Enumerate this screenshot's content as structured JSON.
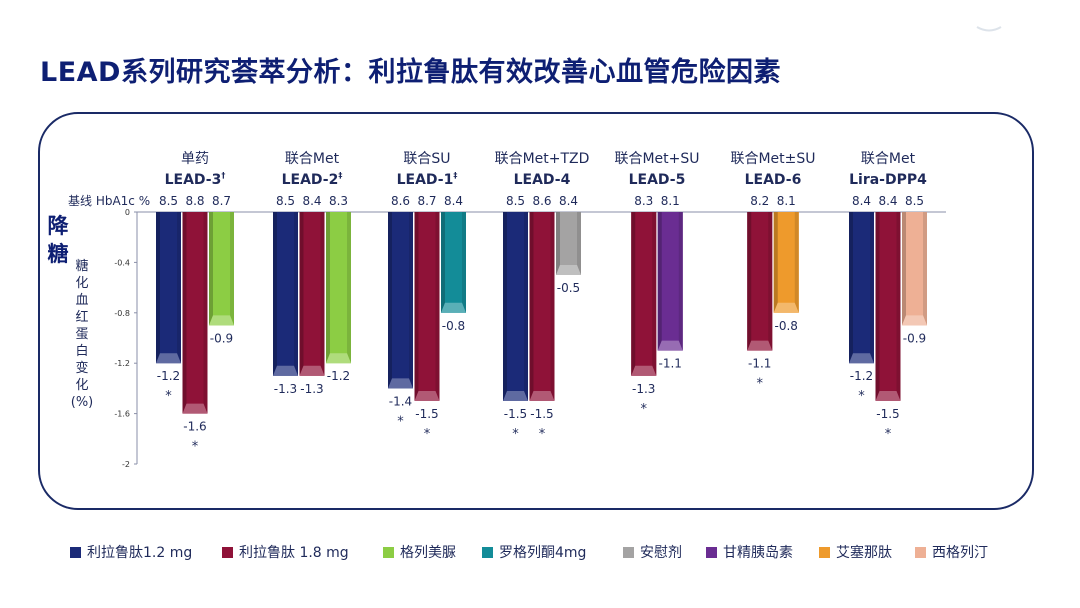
{
  "title": "LEAD系列研究荟萃分析：利拉鲁肽有效改善心血管危险因素",
  "side_title_chars": [
    "降",
    "糖"
  ],
  "y_title_chars": [
    "糖",
    "化",
    "血",
    "红",
    "蛋",
    "白",
    "变",
    "化"
  ],
  "y_title_unit": "(%)",
  "baseline_label": "基线 HbA1c %",
  "colors": {
    "liraglutide_1_2": "#1b2a78",
    "liraglutide_1_8": "#8f1238",
    "glimepiride": "#8ccd44",
    "rosiglitazone": "#138c98",
    "placebo": "#a4a3a3",
    "glargine": "#6a2d92",
    "exenatide": "#ee9a2c",
    "sitagliptin": "#eeb095",
    "text": "#1f2a5a",
    "title": "#0e1f73"
  },
  "legend": [
    {
      "key": "liraglutide_1_2",
      "label": "利拉鲁肽1.2 mg"
    },
    {
      "key": "liraglutide_1_8",
      "label": "利拉鲁肽 1.8 mg"
    },
    {
      "key": "glimepiride",
      "label": "格列美脲"
    },
    {
      "key": "rosiglitazone",
      "label": "罗格列酮4mg"
    },
    {
      "key": "placebo",
      "label": "安慰剂"
    },
    {
      "key": "glargine",
      "label": "甘精胰岛素"
    },
    {
      "key": "exenatide",
      "label": "艾塞那肽"
    },
    {
      "key": "sitagliptin",
      "label": "西格列汀"
    }
  ],
  "chart_data": {
    "type": "bar",
    "ylim": [
      -2,
      0
    ],
    "yticks": [
      "0",
      "-0.4",
      "-0.8",
      "-1.2",
      "-1.6",
      "-2"
    ],
    "ytick_values": [
      0,
      -0.4,
      -0.8,
      -1.2,
      -1.6,
      -2
    ],
    "xlabel": "",
    "ylabel": "糖化血红蛋白变化(%)",
    "groups": [
      {
        "top": "单药",
        "name": "LEAD-3",
        "sup": "†",
        "bars": [
          {
            "key": "liraglutide_1_2",
            "value": -1.2,
            "baseline": "8.5",
            "label": "-1.2",
            "star": true
          },
          {
            "key": "liraglutide_1_8",
            "value": -1.6,
            "baseline": "8.8",
            "label": "-1.6",
            "star": true
          },
          {
            "key": "glimepiride",
            "value": -0.9,
            "baseline": "8.7",
            "label": "-0.9",
            "star": false
          }
        ]
      },
      {
        "top": "联合Met",
        "name": "LEAD-2",
        "sup": "‡",
        "bars": [
          {
            "key": "liraglutide_1_2",
            "value": -1.3,
            "baseline": "8.5",
            "label": "-1.3",
            "star": false
          },
          {
            "key": "liraglutide_1_8",
            "value": -1.3,
            "baseline": "8.4",
            "label": "-1.3",
            "star": false
          },
          {
            "key": "glimepiride",
            "value": -1.2,
            "baseline": "8.3",
            "label": "-1.2",
            "star": false
          }
        ]
      },
      {
        "top": "联合SU",
        "name": "LEAD-1",
        "sup": "‡",
        "bars": [
          {
            "key": "liraglutide_1_2",
            "value": -1.4,
            "baseline": "8.6",
            "label": "-1.4",
            "star": true
          },
          {
            "key": "liraglutide_1_8",
            "value": -1.5,
            "baseline": "8.7",
            "label": "-1.5",
            "star": true
          },
          {
            "key": "rosiglitazone",
            "value": -0.8,
            "baseline": "8.4",
            "label": "-0.8",
            "star": false
          }
        ]
      },
      {
        "top": "联合Met+TZD",
        "name": "LEAD-4",
        "sup": "",
        "bars": [
          {
            "key": "liraglutide_1_2",
            "value": -1.5,
            "baseline": "8.5",
            "label": "-1.5",
            "star": true
          },
          {
            "key": "liraglutide_1_8",
            "value": -1.5,
            "baseline": "8.6",
            "label": "-1.5",
            "star": true
          },
          {
            "key": "placebo",
            "value": -0.5,
            "baseline": "8.4",
            "label": "-0.5",
            "star": false
          }
        ]
      },
      {
        "top": "联合Met+SU",
        "name": "LEAD-5",
        "sup": "",
        "bars": [
          {
            "key": "liraglutide_1_8",
            "value": -1.3,
            "baseline": "8.3",
            "label": "-1.3",
            "star": true
          },
          {
            "key": "glargine",
            "value": -1.1,
            "baseline": "8.1",
            "label": "-1.1",
            "star": false
          }
        ]
      },
      {
        "top": "联合Met±SU",
        "name": "LEAD-6",
        "sup": "",
        "bars": [
          {
            "key": "liraglutide_1_8",
            "value": -1.1,
            "baseline": "8.2",
            "label": "-1.1",
            "star": true
          },
          {
            "key": "exenatide",
            "value": -0.8,
            "baseline": "8.1",
            "label": "-0.8",
            "star": false
          }
        ]
      },
      {
        "top": "联合Met",
        "name": "Lira-DPP4",
        "sup": "",
        "bars": [
          {
            "key": "liraglutide_1_2",
            "value": -1.2,
            "baseline": "8.4",
            "label": "-1.2",
            "star": true
          },
          {
            "key": "liraglutide_1_8",
            "value": -1.5,
            "baseline": "8.4",
            "label": "-1.5",
            "star": true
          },
          {
            "key": "sitagliptin",
            "value": -0.9,
            "baseline": "8.5",
            "label": "-0.9",
            "star": false
          }
        ]
      }
    ]
  }
}
